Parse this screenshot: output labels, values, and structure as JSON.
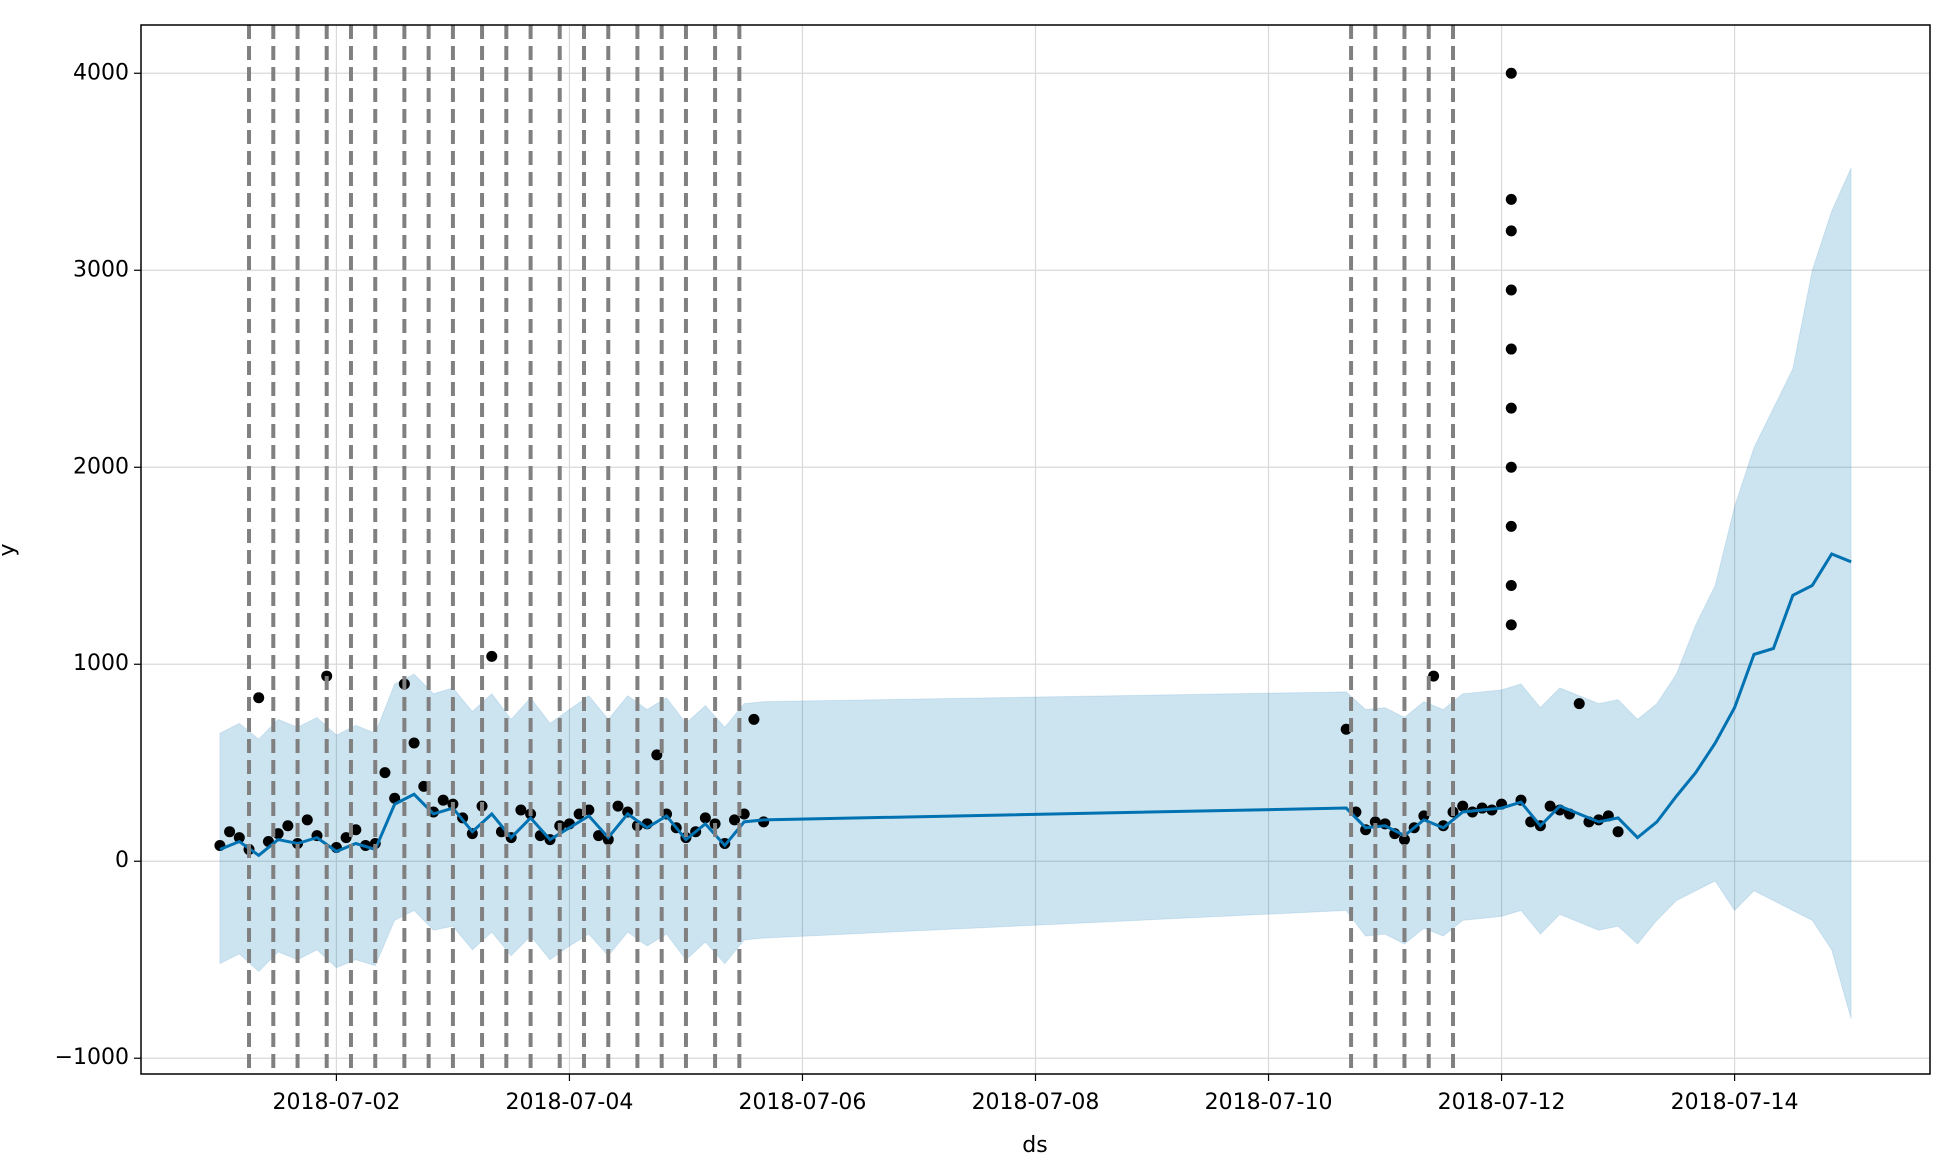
{
  "chart_data": {
    "type": "line",
    "xlabel": "ds",
    "ylabel": "y",
    "xlim": [
      "2018-06-30 07:45",
      "2018-07-15 16:15"
    ],
    "ylim": [
      -1080,
      4245
    ],
    "xticks": [
      "2018-07-02",
      "2018-07-04",
      "2018-07-06",
      "2018-07-08",
      "2018-07-10",
      "2018-07-12",
      "2018-07-14"
    ],
    "yticks": [
      {
        "value": -1000,
        "label": "−1000"
      },
      0,
      1000,
      2000,
      3000,
      4000
    ],
    "grid": true,
    "line_color": "#0072B2",
    "band_color": "#0072B2",
    "point_color": "#000000",
    "changepoint_color": "#808080",
    "forecast": {
      "x": [
        "2018-07-01 00:00",
        "2018-07-01 04:00",
        "2018-07-01 08:00",
        "2018-07-01 12:00",
        "2018-07-01 16:00",
        "2018-07-01 20:00",
        "2018-07-02 00:00",
        "2018-07-02 04:00",
        "2018-07-02 08:00",
        "2018-07-02 12:00",
        "2018-07-02 16:00",
        "2018-07-02 20:00",
        "2018-07-03 00:00",
        "2018-07-03 04:00",
        "2018-07-03 08:00",
        "2018-07-03 12:00",
        "2018-07-03 16:00",
        "2018-07-03 20:00",
        "2018-07-04 00:00",
        "2018-07-04 04:00",
        "2018-07-04 08:00",
        "2018-07-04 12:00",
        "2018-07-04 16:00",
        "2018-07-04 20:00",
        "2018-07-05 00:00",
        "2018-07-05 04:00",
        "2018-07-05 08:00",
        "2018-07-05 12:00",
        "2018-07-05 16:00",
        "2018-07-10 16:00",
        "2018-07-10 20:00",
        "2018-07-11 00:00",
        "2018-07-11 04:00",
        "2018-07-11 08:00",
        "2018-07-11 12:00",
        "2018-07-11 16:00",
        "2018-07-11 20:00",
        "2018-07-12 00:00",
        "2018-07-12 04:00",
        "2018-07-12 08:00",
        "2018-07-12 12:00",
        "2018-07-12 16:00",
        "2018-07-12 20:00",
        "2018-07-13 00:00",
        "2018-07-13 04:00",
        "2018-07-13 08:00",
        "2018-07-13 12:00",
        "2018-07-13 16:00",
        "2018-07-13 20:00",
        "2018-07-14 00:00",
        "2018-07-14 04:00",
        "2018-07-14 08:00",
        "2018-07-14 12:00",
        "2018-07-14 16:00",
        "2018-07-14 20:00",
        "2018-07-15 00:00"
      ],
      "yhat": [
        60,
        100,
        30,
        110,
        90,
        120,
        50,
        90,
        60,
        290,
        340,
        240,
        270,
        150,
        240,
        120,
        220,
        110,
        170,
        230,
        120,
        240,
        170,
        230,
        110,
        190,
        80,
        200,
        210,
        270,
        170,
        180,
        130,
        210,
        170,
        250,
        260,
        270,
        300,
        180,
        280,
        240,
        200,
        220,
        120,
        200,
        330,
        450,
        600,
        780,
        1050,
        1080,
        1350,
        1400,
        1560,
        1520
      ],
      "yhat_upper": [
        650,
        700,
        620,
        720,
        680,
        730,
        640,
        690,
        650,
        900,
        950,
        850,
        880,
        760,
        850,
        720,
        830,
        700,
        770,
        840,
        720,
        840,
        770,
        830,
        700,
        790,
        680,
        800,
        810,
        860,
        770,
        780,
        730,
        810,
        770,
        850,
        860,
        870,
        900,
        780,
        880,
        840,
        800,
        820,
        720,
        800,
        950,
        1200,
        1400,
        1800,
        2100,
        2300,
        2500,
        3000,
        3300,
        3520
      ],
      "yhat_lower": [
        -520,
        -470,
        -560,
        -460,
        -500,
        -450,
        -540,
        -500,
        -530,
        -300,
        -250,
        -350,
        -330,
        -450,
        -360,
        -480,
        -380,
        -500,
        -430,
        -370,
        -480,
        -360,
        -430,
        -370,
        -500,
        -410,
        -520,
        -400,
        -390,
        -250,
        -380,
        -370,
        -420,
        -340,
        -380,
        -300,
        -290,
        -280,
        -250,
        -370,
        -270,
        -310,
        -350,
        -330,
        -420,
        -300,
        -200,
        -150,
        -100,
        -250,
        -150,
        -200,
        -250,
        -300,
        -450,
        -800
      ]
    },
    "observed": {
      "x": [
        "2018-07-01 00:00",
        "2018-07-01 02:00",
        "2018-07-01 04:00",
        "2018-07-01 06:00",
        "2018-07-01 08:00",
        "2018-07-01 10:00",
        "2018-07-01 12:00",
        "2018-07-01 14:00",
        "2018-07-01 16:00",
        "2018-07-01 18:00",
        "2018-07-01 20:00",
        "2018-07-01 22:00",
        "2018-07-02 00:00",
        "2018-07-02 02:00",
        "2018-07-02 04:00",
        "2018-07-02 06:00",
        "2018-07-02 08:00",
        "2018-07-02 10:00",
        "2018-07-02 12:00",
        "2018-07-02 14:00",
        "2018-07-02 16:00",
        "2018-07-02 18:00",
        "2018-07-02 20:00",
        "2018-07-02 22:00",
        "2018-07-03 00:00",
        "2018-07-03 02:00",
        "2018-07-03 04:00",
        "2018-07-03 06:00",
        "2018-07-03 08:00",
        "2018-07-03 10:00",
        "2018-07-03 12:00",
        "2018-07-03 14:00",
        "2018-07-03 16:00",
        "2018-07-03 18:00",
        "2018-07-03 20:00",
        "2018-07-03 22:00",
        "2018-07-04 00:00",
        "2018-07-04 02:00",
        "2018-07-04 04:00",
        "2018-07-04 06:00",
        "2018-07-04 08:00",
        "2018-07-04 10:00",
        "2018-07-04 12:00",
        "2018-07-04 14:00",
        "2018-07-04 16:00",
        "2018-07-04 18:00",
        "2018-07-04 20:00",
        "2018-07-04 22:00",
        "2018-07-05 00:00",
        "2018-07-05 02:00",
        "2018-07-05 04:00",
        "2018-07-05 06:00",
        "2018-07-05 08:00",
        "2018-07-05 10:00",
        "2018-07-05 12:00",
        "2018-07-05 14:00",
        "2018-07-05 16:00",
        "2018-07-10 16:00",
        "2018-07-10 18:00",
        "2018-07-10 20:00",
        "2018-07-10 22:00",
        "2018-07-11 00:00",
        "2018-07-11 02:00",
        "2018-07-11 04:00",
        "2018-07-11 06:00",
        "2018-07-11 08:00",
        "2018-07-11 10:00",
        "2018-07-11 12:00",
        "2018-07-11 14:00",
        "2018-07-11 16:00",
        "2018-07-11 18:00",
        "2018-07-11 20:00",
        "2018-07-11 22:00",
        "2018-07-12 00:00",
        "2018-07-12 02:00",
        "2018-07-12 04:00",
        "2018-07-12 06:00",
        "2018-07-12 08:00",
        "2018-07-12 10:00",
        "2018-07-12 12:00",
        "2018-07-12 14:00",
        "2018-07-12 16:00",
        "2018-07-12 18:00",
        "2018-07-12 20:00",
        "2018-07-12 22:00",
        "2018-07-13 00:00",
        "2018-07-12 02:00",
        "2018-07-12 02:00",
        "2018-07-12 02:00",
        "2018-07-12 02:00",
        "2018-07-12 02:00",
        "2018-07-12 02:00",
        "2018-07-12 02:00",
        "2018-07-12 02:00",
        "2018-07-12 02:00"
      ],
      "y": [
        80,
        150,
        120,
        60,
        830,
        100,
        140,
        180,
        90,
        210,
        130,
        940,
        70,
        120,
        160,
        80,
        90,
        450,
        320,
        900,
        600,
        380,
        250,
        310,
        290,
        220,
        140,
        280,
        1040,
        150,
        120,
        260,
        240,
        130,
        110,
        180,
        190,
        240,
        260,
        130,
        110,
        280,
        250,
        180,
        190,
        540,
        240,
        170,
        120,
        150,
        220,
        190,
        90,
        210,
        240,
        720,
        200,
        670,
        250,
        160,
        200,
        190,
        140,
        110,
        170,
        230,
        940,
        180,
        250,
        280,
        250,
        270,
        260,
        290,
        4000,
        310,
        200,
        180,
        280,
        260,
        240,
        800,
        200,
        210,
        230,
        150,
        3360,
        3200,
        2900,
        2600,
        2300,
        2000,
        1700,
        1400,
        1200
      ]
    },
    "changepoints": [
      "2018-07-01 06:00",
      "2018-07-01 11:00",
      "2018-07-01 16:00",
      "2018-07-01 22:00",
      "2018-07-02 03:00",
      "2018-07-02 08:00",
      "2018-07-02 14:00",
      "2018-07-02 19:00",
      "2018-07-03 00:00",
      "2018-07-03 06:00",
      "2018-07-03 11:00",
      "2018-07-03 16:00",
      "2018-07-03 22:00",
      "2018-07-04 03:00",
      "2018-07-04 08:00",
      "2018-07-04 14:00",
      "2018-07-04 19:00",
      "2018-07-05 00:00",
      "2018-07-05 06:00",
      "2018-07-05 11:00",
      "2018-07-10 17:00",
      "2018-07-10 22:00",
      "2018-07-11 04:00",
      "2018-07-11 09:00",
      "2018-07-11 14:00"
    ]
  }
}
